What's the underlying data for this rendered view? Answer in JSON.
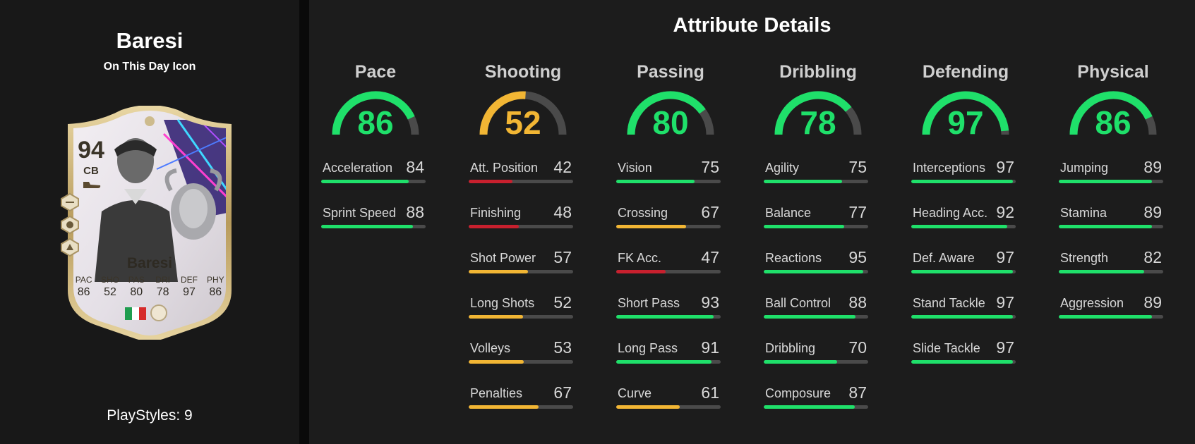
{
  "player": {
    "name": "Baresi",
    "version": "On This Day Icon",
    "playstyles": "PlayStyles: 9"
  },
  "card": {
    "rating": "94",
    "position": "CB",
    "name": "Baresi",
    "stats": [
      {
        "label": "PAC",
        "value": "86"
      },
      {
        "label": "SHO",
        "value": "52"
      },
      {
        "label": "PAS",
        "value": "80"
      },
      {
        "label": "DRI",
        "value": "78"
      },
      {
        "label": "DEF",
        "value": "97"
      },
      {
        "label": "PHY",
        "value": "86"
      }
    ],
    "nation_flag_colors": [
      "#1f9d4f",
      "#ffffff",
      "#d62b2b"
    ]
  },
  "section_title": "Attribute Details",
  "colors": {
    "green": "#1fe06a",
    "yellow": "#f2b634",
    "red": "#c8202e",
    "track": "#4a4a4a"
  },
  "categories": [
    {
      "name": "Pace",
      "value": 86,
      "attributes": [
        {
          "label": "Acceleration",
          "value": 84
        },
        {
          "label": "Sprint Speed",
          "value": 88
        }
      ]
    },
    {
      "name": "Shooting",
      "value": 52,
      "attributes": [
        {
          "label": "Att. Position",
          "value": 42
        },
        {
          "label": "Finishing",
          "value": 48
        },
        {
          "label": "Shot Power",
          "value": 57
        },
        {
          "label": "Long Shots",
          "value": 52
        },
        {
          "label": "Volleys",
          "value": 53
        },
        {
          "label": "Penalties",
          "value": 67
        }
      ]
    },
    {
      "name": "Passing",
      "value": 80,
      "attributes": [
        {
          "label": "Vision",
          "value": 75
        },
        {
          "label": "Crossing",
          "value": 67
        },
        {
          "label": "FK Acc.",
          "value": 47
        },
        {
          "label": "Short Pass",
          "value": 93
        },
        {
          "label": "Long Pass",
          "value": 91
        },
        {
          "label": "Curve",
          "value": 61
        }
      ]
    },
    {
      "name": "Dribbling",
      "value": 78,
      "attributes": [
        {
          "label": "Agility",
          "value": 75
        },
        {
          "label": "Balance",
          "value": 77
        },
        {
          "label": "Reactions",
          "value": 95
        },
        {
          "label": "Ball Control",
          "value": 88
        },
        {
          "label": "Dribbling",
          "value": 70
        },
        {
          "label": "Composure",
          "value": 87
        }
      ]
    },
    {
      "name": "Defending",
      "value": 97,
      "attributes": [
        {
          "label": "Interceptions",
          "value": 97
        },
        {
          "label": "Heading Acc.",
          "value": 92
        },
        {
          "label": "Def. Aware",
          "value": 97
        },
        {
          "label": "Stand Tackle",
          "value": 97
        },
        {
          "label": "Slide Tackle",
          "value": 97
        }
      ]
    },
    {
      "name": "Physical",
      "value": 86,
      "attributes": [
        {
          "label": "Jumping",
          "value": 89
        },
        {
          "label": "Stamina",
          "value": 89
        },
        {
          "label": "Strength",
          "value": 82
        },
        {
          "label": "Aggression",
          "value": 89
        }
      ]
    }
  ]
}
